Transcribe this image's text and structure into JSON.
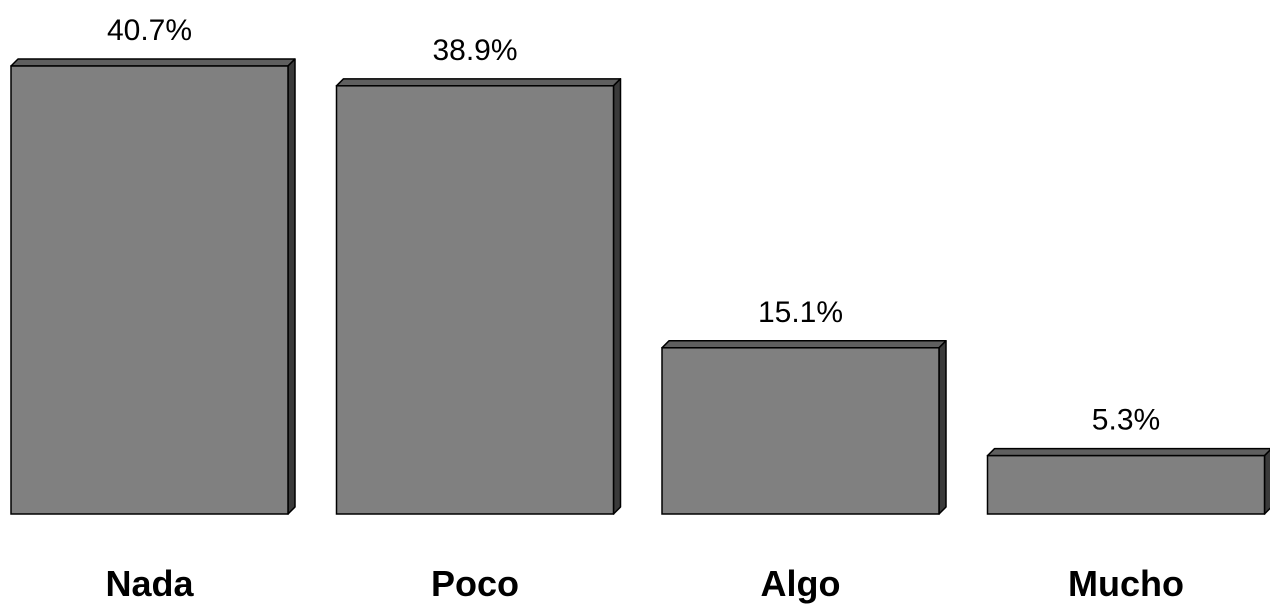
{
  "chart_data": {
    "type": "bar",
    "categories": [
      "Nada",
      "Poco",
      "Algo",
      "Mucho"
    ],
    "values": [
      40.7,
      38.9,
      15.1,
      5.3
    ],
    "value_labels": [
      "40.7%",
      "38.9%",
      "15.1%",
      "5.3%"
    ],
    "title": "",
    "xlabel": "",
    "ylabel": "",
    "ylim": [
      0,
      40.7
    ],
    "grid": false,
    "legend": "none",
    "style": "3d-bar",
    "colors": {
      "bar_front": "#808080",
      "bar_top": "#5f5f5f",
      "bar_side": "#3a3a3a",
      "outline": "#000000"
    }
  }
}
